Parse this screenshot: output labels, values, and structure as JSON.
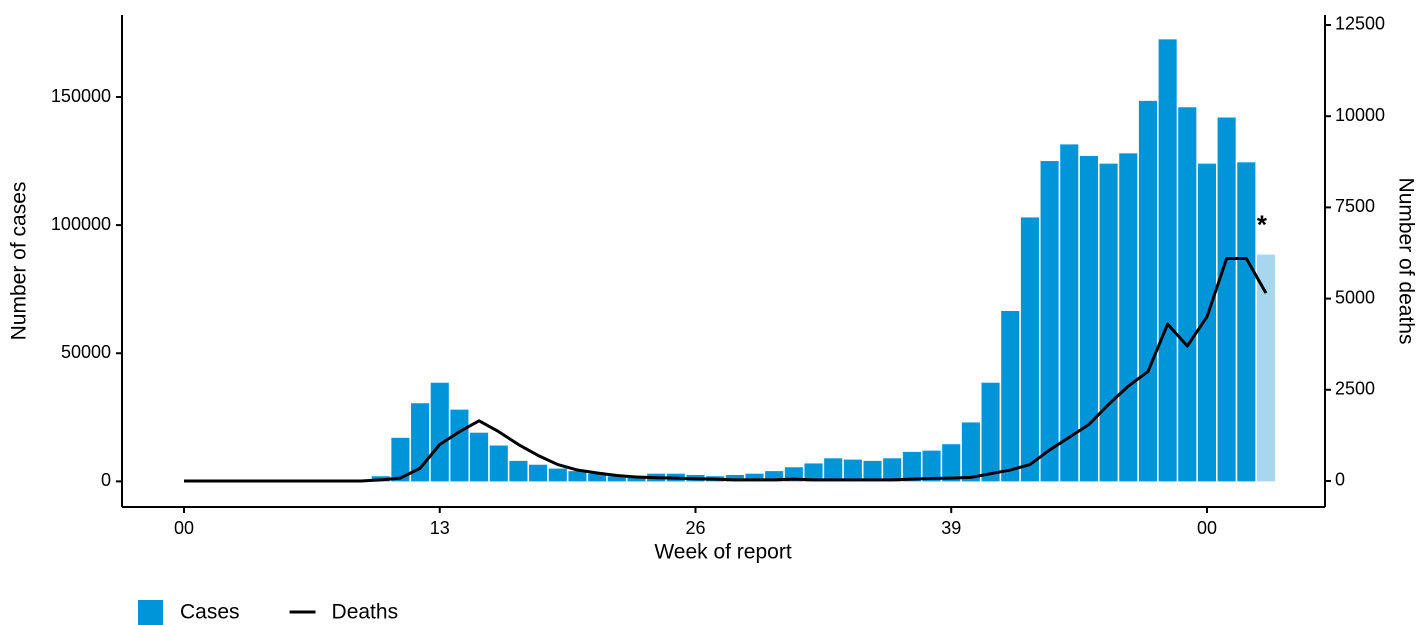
{
  "chart_data": {
    "type": "bar+line",
    "x_label": "Week of report",
    "y_label": "Number of cases",
    "y2_label": "Number of deaths",
    "x": [
      0,
      1,
      2,
      3,
      4,
      5,
      6,
      7,
      8,
      9,
      10,
      11,
      12,
      13,
      14,
      15,
      16,
      17,
      18,
      19,
      20,
      21,
      22,
      23,
      24,
      25,
      26,
      27,
      28,
      29,
      30,
      31,
      32,
      33,
      34,
      35,
      36,
      37,
      38,
      39,
      40,
      41,
      42,
      43,
      44,
      45,
      46,
      47,
      48,
      49,
      50,
      51,
      52,
      53,
      54,
      55
    ],
    "xlim": [
      -3,
      58
    ],
    "xticks": [
      {
        "value": 0,
        "label": "00"
      },
      13,
      26,
      39,
      {
        "value": 52,
        "label": "00"
      }
    ],
    "ylim": [
      -10000,
      182000
    ],
    "yticks": [
      0,
      50000,
      100000,
      150000
    ],
    "y2lim": [
      -713,
      12774
    ],
    "y2ticks": [
      0,
      2500,
      5000,
      7500,
      10000,
      12500
    ],
    "series": [
      {
        "name": "Cases",
        "type": "bar",
        "color": "#0095d9",
        "colors": [
          null,
          null,
          null,
          null,
          null,
          null,
          null,
          null,
          null,
          null,
          "#0095d9",
          "#0095d9",
          "#0095d9",
          "#0095d9",
          "#0095d9",
          "#0095d9",
          "#0095d9",
          "#0095d9",
          "#0095d9",
          "#0095d9",
          "#0095d9",
          "#0095d9",
          "#0095d9",
          "#0095d9",
          "#0095d9",
          "#0095d9",
          "#0095d9",
          "#0095d9",
          "#0095d9",
          "#0095d9",
          "#0095d9",
          "#0095d9",
          "#0095d9",
          "#0095d9",
          "#0095d9",
          "#0095d9",
          "#0095d9",
          "#0095d9",
          "#0095d9",
          "#0095d9",
          "#0095d9",
          "#0095d9",
          "#0095d9",
          "#0095d9",
          "#0095d9",
          "#0095d9",
          "#0095d9",
          "#0095d9",
          "#0095d9",
          "#0095d9",
          "#0095d9",
          "#0095d9",
          "#0095d9",
          "#0095d9",
          "#0095d9",
          "#a6d7ee"
        ],
        "values": [
          null,
          null,
          null,
          null,
          null,
          null,
          null,
          null,
          null,
          null,
          2000,
          17000,
          30500,
          38500,
          28000,
          19000,
          14000,
          8000,
          6500,
          5000,
          4000,
          3000,
          2000,
          1500,
          3000,
          3000,
          2500,
          2000,
          2500,
          3000,
          4000,
          5500,
          7000,
          9000,
          8500,
          8000,
          9000,
          11500,
          12000,
          14500,
          23000,
          38500,
          66500,
          103000,
          125000,
          131500,
          127000,
          124000,
          128000,
          148500,
          172500,
          146000,
          124000,
          142000,
          124500,
          88500
        ]
      },
      {
        "name": "Deaths",
        "type": "line",
        "axis": "y2",
        "color": "#000000",
        "values": [
          0,
          0,
          0,
          0,
          0,
          0,
          0,
          0,
          0,
          0,
          30,
          80,
          350,
          1000,
          1350,
          1650,
          1350,
          1000,
          700,
          450,
          300,
          220,
          150,
          110,
          90,
          80,
          60,
          50,
          30,
          30,
          30,
          50,
          30,
          30,
          30,
          30,
          30,
          50,
          70,
          80,
          100,
          200,
          300,
          450,
          850,
          1200,
          1550,
          2100,
          2600,
          3000,
          4300,
          3700,
          4500,
          6100,
          6100,
          5150
        ]
      }
    ],
    "annotations": [
      {
        "text": "*",
        "x": 55
      }
    ],
    "legend": "bottom-left"
  }
}
